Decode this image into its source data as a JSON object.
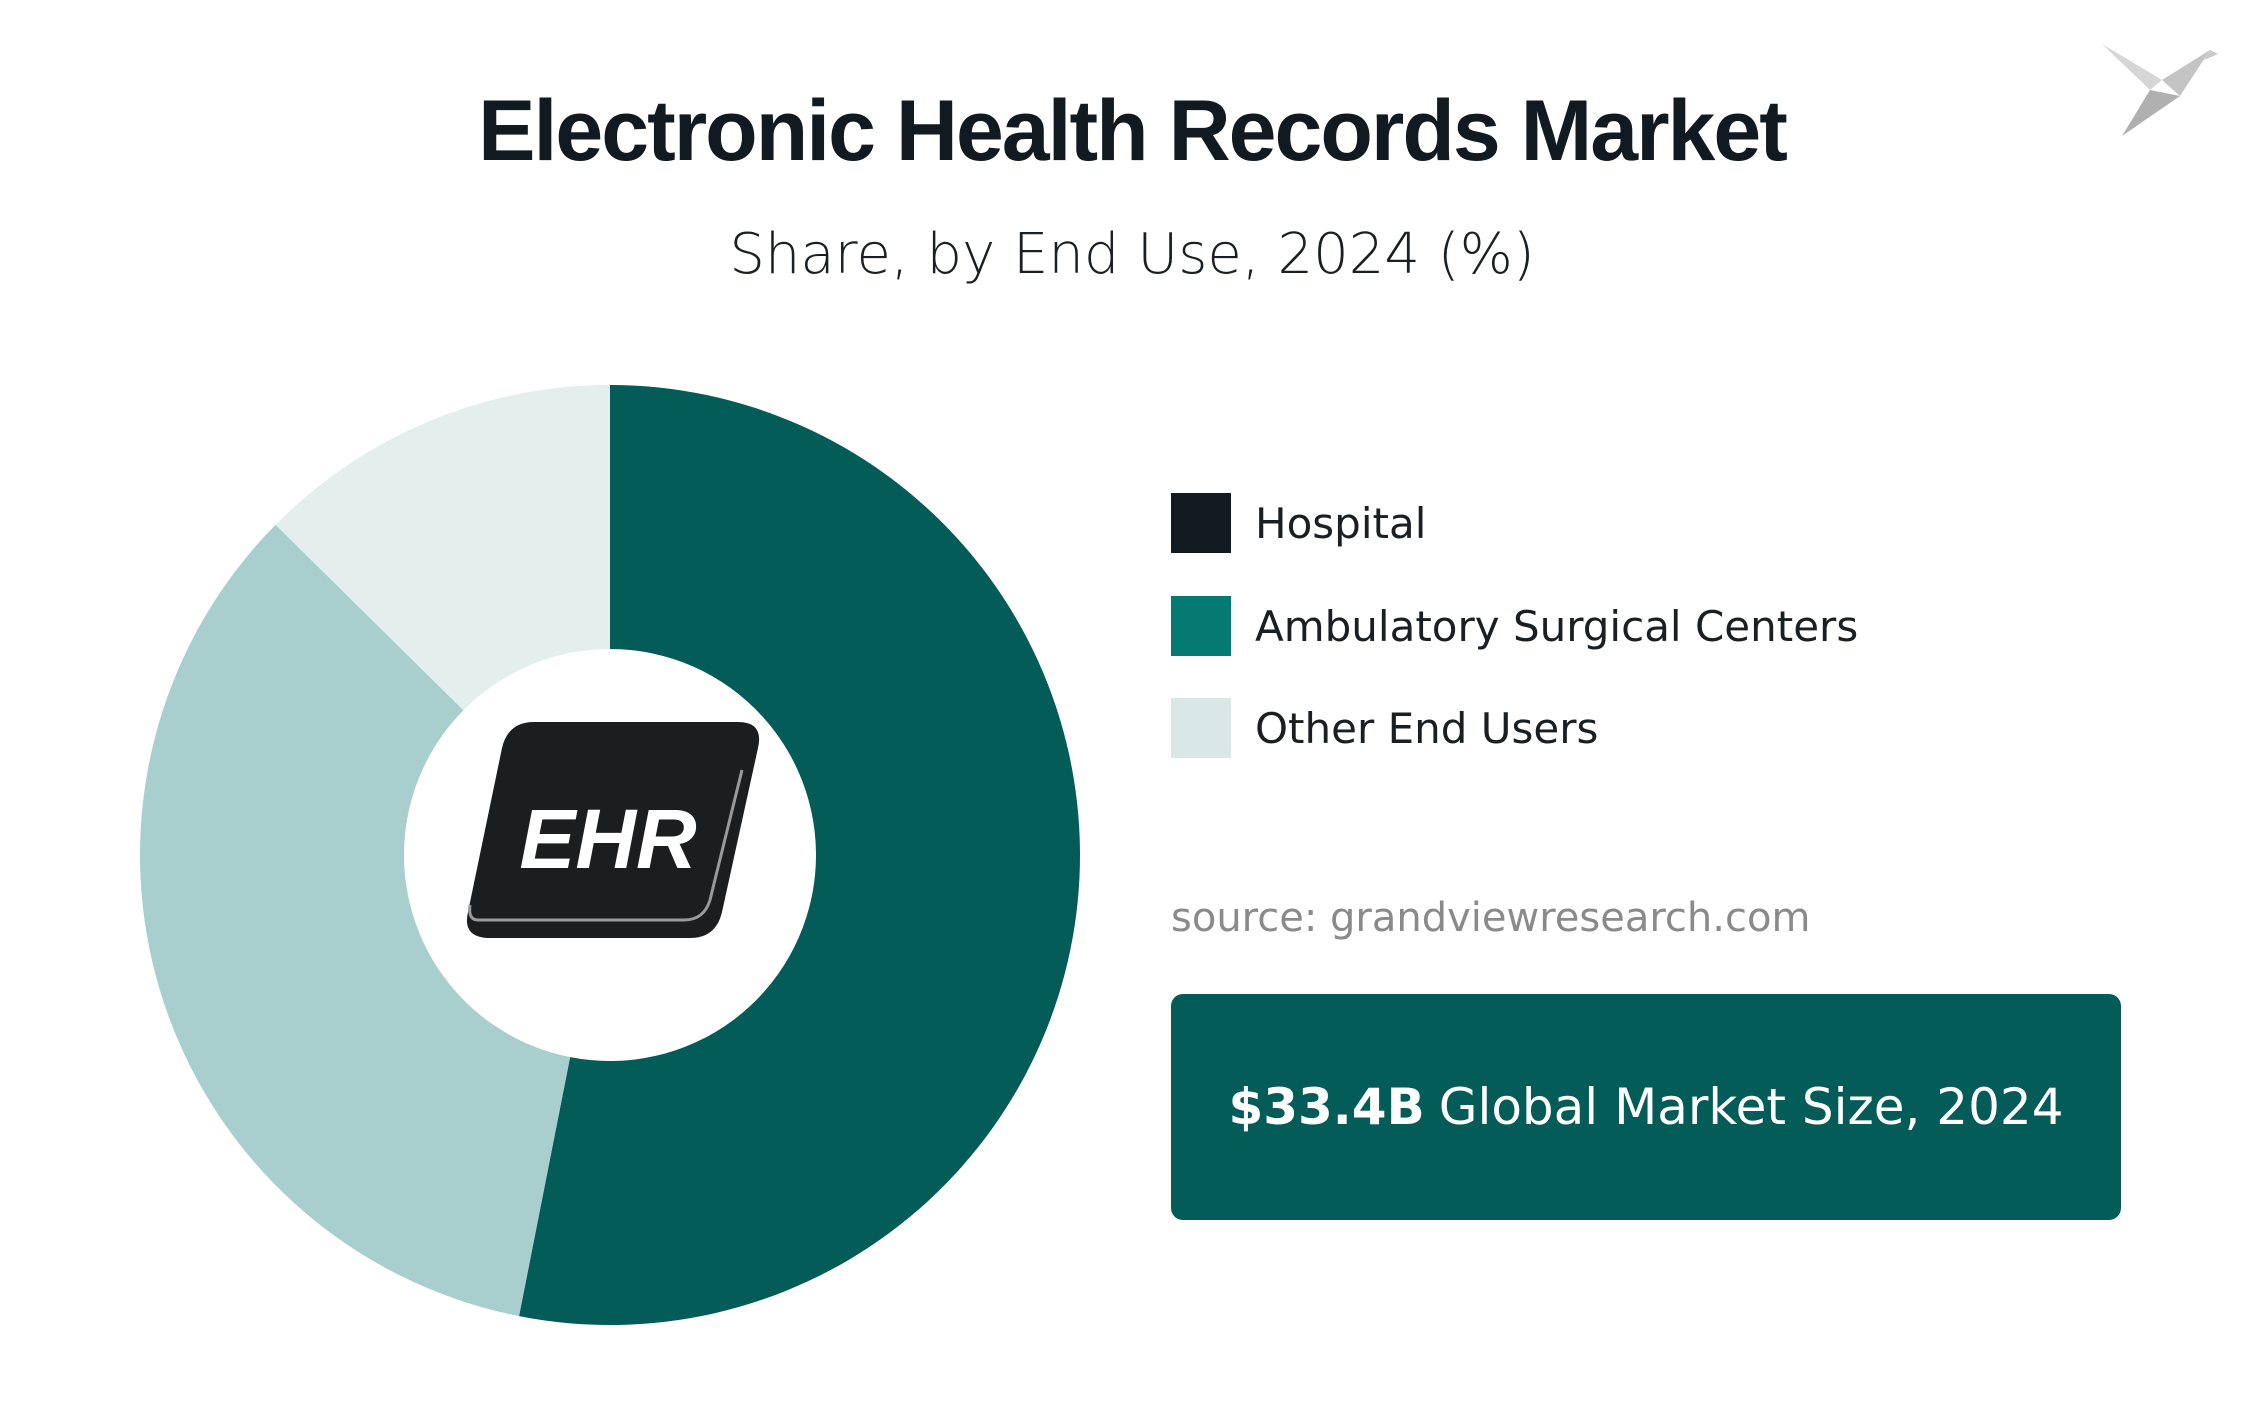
{
  "title": "Electronic Health Records Market",
  "subtitle": "Share, by End Use, 2024 (%)",
  "chart_data": {
    "type": "pie",
    "style": "donut",
    "title": "Electronic Health Records Market",
    "subtitle": "Share, by End Use, 2024 (%)",
    "categories": [
      "Hospital",
      "Ambulatory Surgical Centers",
      "Other End Users"
    ],
    "values": [
      53.1,
      34.3,
      12.6
    ],
    "slice_colors": [
      "#035c58",
      "#a8cfce",
      "#e4eeed"
    ],
    "legend_colors": [
      "#111a20",
      "#047a72",
      "#d9e8e6"
    ],
    "legend_position": "right",
    "center_icon": "EHR"
  },
  "legend": {
    "items": [
      {
        "label": "Hospital",
        "color": "#111a20"
      },
      {
        "label": "Ambulatory Surgical Centers",
        "color": "#047a72"
      },
      {
        "label": "Other End Users",
        "color": "#d9e8e6"
      }
    ]
  },
  "source": "source: grandviewresearch.com",
  "market_box": {
    "value": "$33.4B",
    "label": "Global Market Size, 2024",
    "color": "#035c58"
  },
  "center_icon_text": "EHR",
  "logo_icon": "bird-logo-icon"
}
